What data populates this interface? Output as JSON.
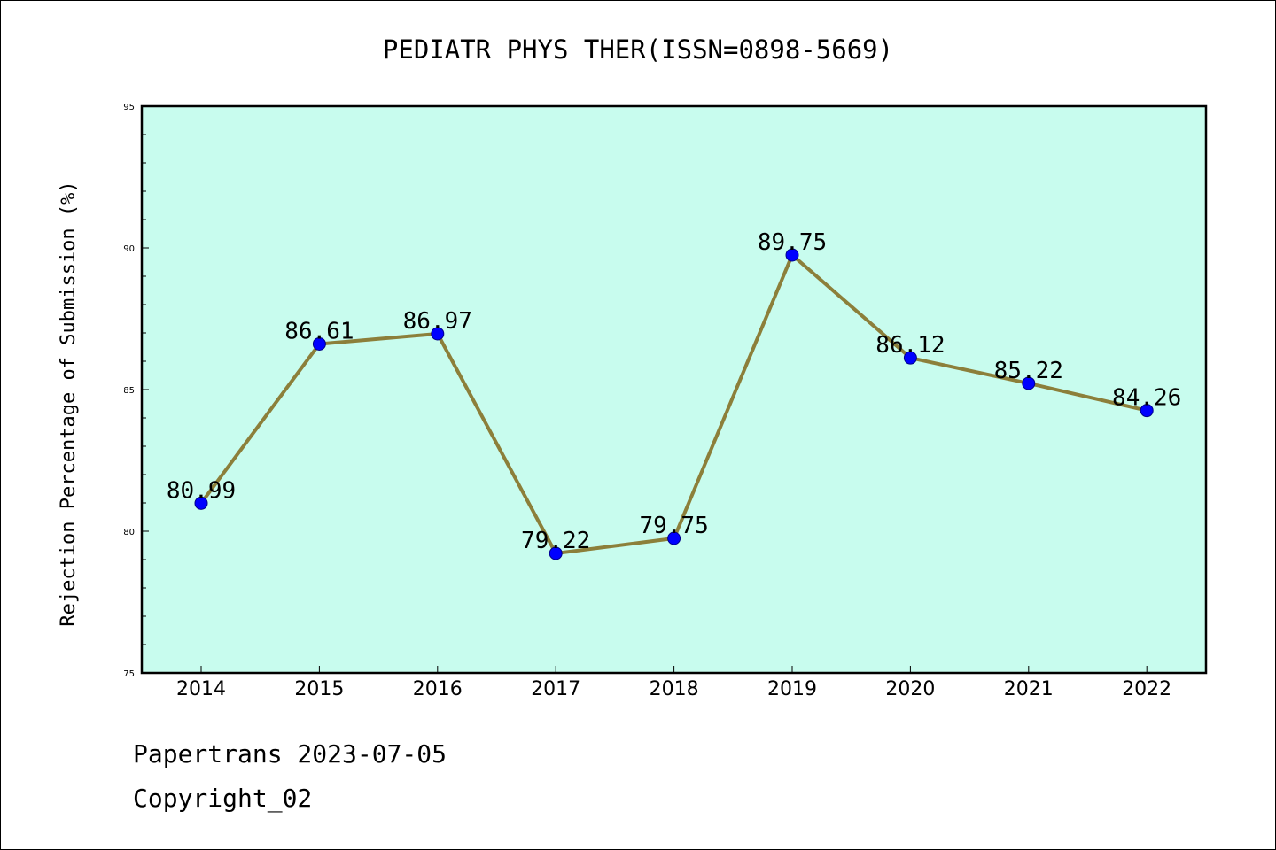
{
  "chart_data": {
    "type": "line",
    "title": "PEDIATR PHYS THER(ISSN=0898-5669)",
    "xlabel": "",
    "ylabel": "Rejection Percentage of Submission (%)",
    "categories": [
      "2014",
      "2015",
      "2016",
      "2017",
      "2018",
      "2019",
      "2020",
      "2021",
      "2022"
    ],
    "series": [
      {
        "values": [
          80.99,
          86.61,
          86.97,
          79.22,
          79.75,
          89.75,
          86.12,
          85.22,
          84.26
        ],
        "labels": [
          "80.99",
          "86.61",
          "86.97",
          "79.22",
          "79.75",
          "89.75",
          "86.12",
          "85.22",
          "84.26"
        ]
      }
    ],
    "ylim": [
      75,
      95
    ],
    "yticks": [
      "75",
      "80",
      "85",
      "90",
      "95"
    ],
    "grid": false,
    "colors": {
      "plot_background": "#c8fcee",
      "line": "#8c7f3a",
      "marker": "#0000ff"
    }
  },
  "footer": {
    "line1": "Papertrans 2023-07-05",
    "line2": "Copyright_02"
  }
}
